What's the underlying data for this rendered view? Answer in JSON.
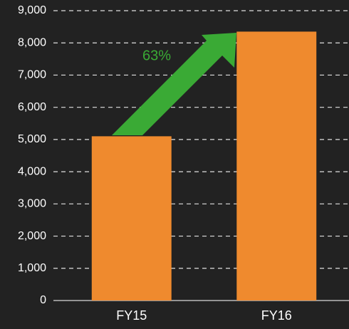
{
  "chart_data": {
    "type": "bar",
    "categories": [
      "FY15",
      "FY16"
    ],
    "values": [
      5100,
      8350
    ],
    "color": "#ef8a2e",
    "ylim": [
      0,
      9000
    ],
    "yticks": [
      0,
      {
        "value": 1000,
        "label": "1,000"
      },
      {
        "value": 2000,
        "label": "2,000"
      },
      {
        "value": 3000,
        "label": "3,000"
      },
      {
        "value": 4000,
        "label": "4,000"
      },
      {
        "value": 5000,
        "label": "5,000"
      },
      {
        "value": 6000,
        "label": "6,000"
      },
      {
        "value": 7000,
        "label": "7,000"
      },
      {
        "value": 8000,
        "label": "8,000"
      },
      {
        "value": 9000,
        "label": "9,000"
      }
    ],
    "grid": true,
    "annotation": "63%",
    "annotation_color": "#3aaa35"
  }
}
